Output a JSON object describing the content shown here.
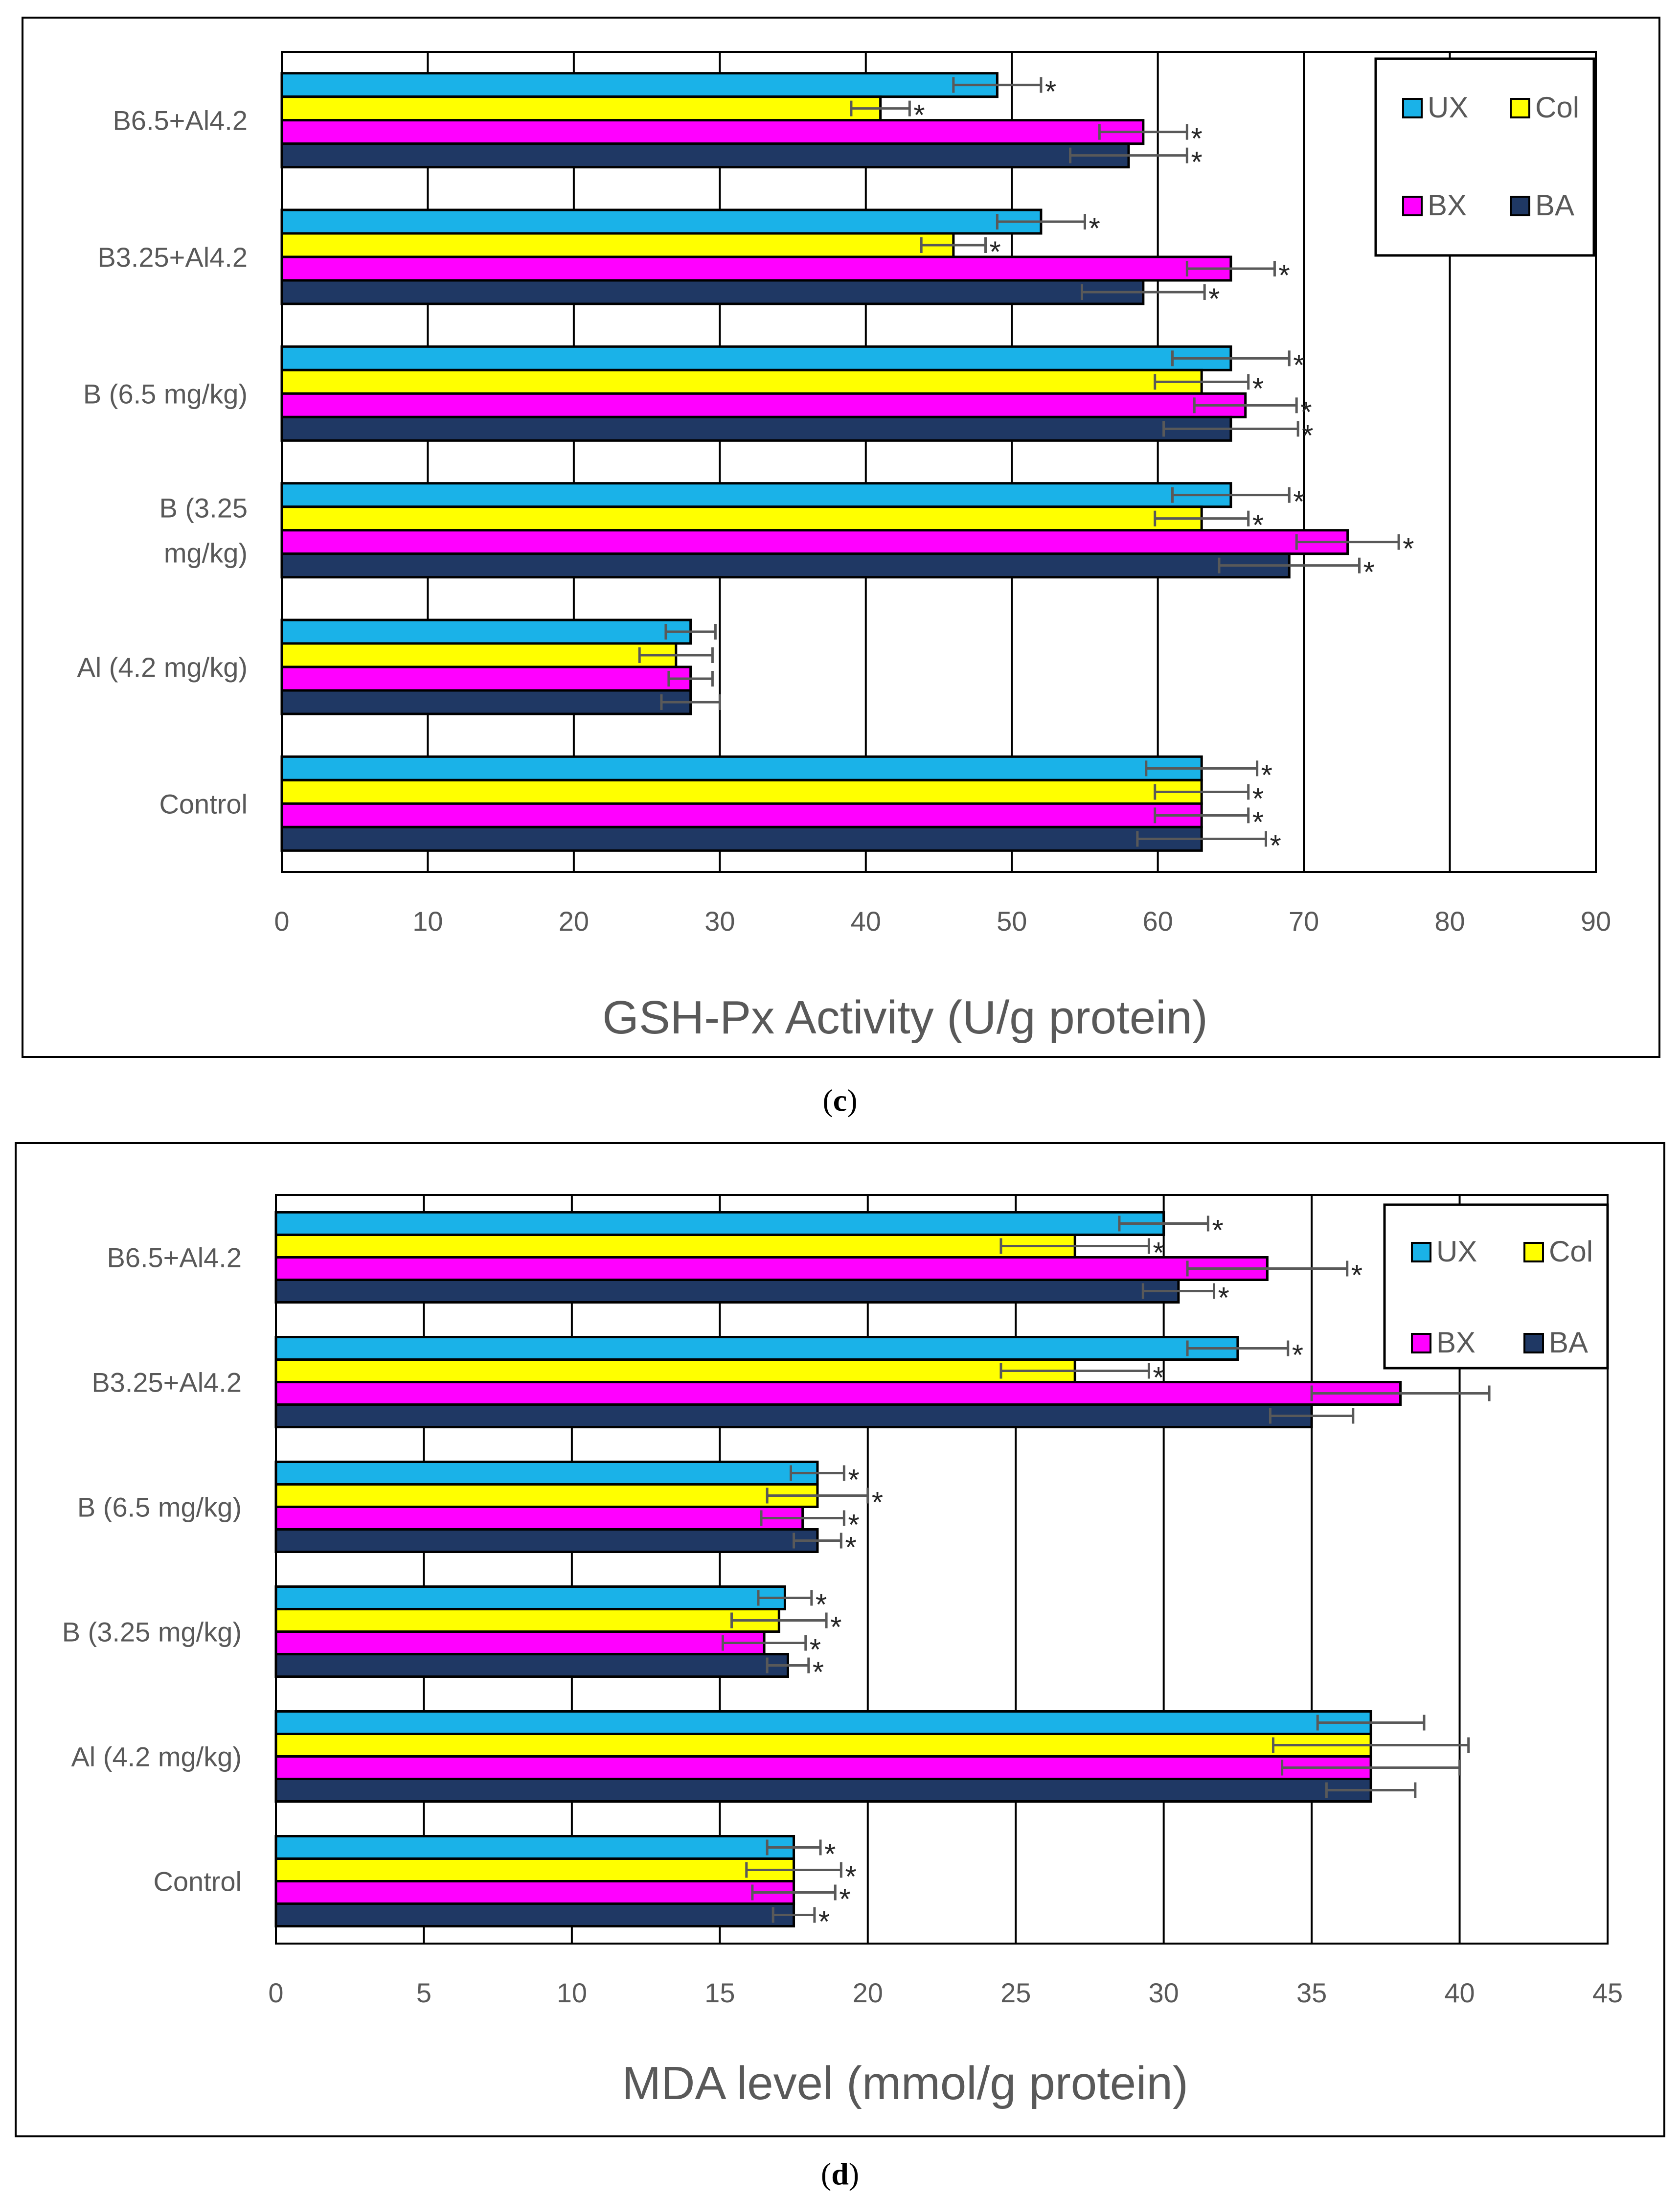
{
  "figures": [
    {
      "id": "c",
      "caption_letter": "c",
      "chart_data": {
        "type": "bar",
        "orientation": "horizontal",
        "xlabel": "GSH-Px Activity (U/g protein)",
        "ylabel": "",
        "xlim": [
          0,
          90
        ],
        "xticks": [
          0,
          10,
          20,
          30,
          40,
          50,
          60,
          70,
          80,
          90
        ],
        "grid": true,
        "legend_position": "top-right",
        "categories": [
          [
            "B6.5+Al4.2"
          ],
          [
            "B3.25+Al4.2"
          ],
          [
            "B (6.5 mg/kg)"
          ],
          [
            "B (3.25",
            "mg/kg)"
          ],
          [
            "Al (4.2 mg/kg)"
          ],
          [
            "Control"
          ]
        ],
        "series": [
          {
            "name": "UX",
            "color": "#1ab2e8",
            "values": [
              49,
              52,
              65,
              65,
              28,
              63
            ],
            "errors": [
              3,
              3,
              4,
              4,
              1.7,
              3.8
            ],
            "marks": [
              "*",
              "*",
              "*",
              "*",
              "",
              "*"
            ]
          },
          {
            "name": "Col",
            "color": "#ffff00",
            "values": [
              41,
              46,
              63,
              63,
              27,
              63
            ],
            "errors": [
              2,
              2.2,
              3.2,
              3.2,
              2.5,
              3.2
            ],
            "marks": [
              "*",
              "*",
              "*",
              "*",
              "",
              "*"
            ]
          },
          {
            "name": "BX",
            "color": "#ff00ff",
            "values": [
              59,
              65,
              66,
              73,
              28,
              63
            ],
            "errors": [
              3,
              3,
              3.5,
              3.5,
              1.5,
              3.2
            ],
            "marks": [
              "*",
              "*",
              "*",
              "*",
              "",
              "*"
            ]
          },
          {
            "name": "BA",
            "color": "#1f3864",
            "values": [
              58,
              59,
              65,
              69,
              28,
              63
            ],
            "errors": [
              4,
              4.2,
              4.6,
              4.8,
              2,
              4.4
            ],
            "marks": [
              "*",
              "*",
              "*",
              "*",
              "",
              "*"
            ]
          }
        ]
      }
    },
    {
      "id": "d",
      "caption_letter": "d",
      "chart_data": {
        "type": "bar",
        "orientation": "horizontal",
        "xlabel": "MDA level (mmol/g protein)",
        "ylabel": "",
        "xlim": [
          0,
          45
        ],
        "xticks": [
          0,
          5,
          10,
          15,
          20,
          25,
          30,
          35,
          40,
          45
        ],
        "grid": true,
        "legend_position": "top-right",
        "categories": [
          [
            "B6.5+Al4.2"
          ],
          [
            "B3.25+Al4.2"
          ],
          [
            "B (6.5 mg/kg)"
          ],
          [
            "B (3.25 mg/kg)"
          ],
          [
            "Al (4.2 mg/kg)"
          ],
          [
            "Control"
          ]
        ],
        "series": [
          {
            "name": "UX",
            "color": "#1ab2e8",
            "values": [
              30,
              32.5,
              18.3,
              17.2,
              37,
              17.5
            ],
            "errors": [
              1.5,
              1.7,
              0.9,
              0.9,
              1.8,
              0.9
            ],
            "marks": [
              "*",
              "*",
              "*",
              "*",
              "",
              "*"
            ]
          },
          {
            "name": "Col",
            "color": "#ffff00",
            "values": [
              27,
              27,
              18.3,
              17,
              37,
              17.5
            ],
            "errors": [
              2.5,
              2.5,
              1.7,
              1.6,
              3.3,
              1.6
            ],
            "marks": [
              "*",
              "*",
              "*",
              "*",
              "",
              "*"
            ]
          },
          {
            "name": "BX",
            "color": "#ff00ff",
            "values": [
              33.5,
              38,
              17.8,
              16.5,
              37,
              17.5
            ],
            "errors": [
              2.7,
              3,
              1.4,
              1.4,
              3,
              1.4
            ],
            "marks": [
              "*",
              "",
              "*",
              "*",
              "",
              "*"
            ]
          },
          {
            "name": "BA",
            "color": "#1f3864",
            "values": [
              30.5,
              35,
              18.3,
              17.3,
              37,
              17.5
            ],
            "errors": [
              1.2,
              1.4,
              0.8,
              0.7,
              1.5,
              0.7
            ],
            "marks": [
              "*",
              "",
              "*",
              "*",
              "",
              "*"
            ]
          }
        ]
      }
    }
  ]
}
